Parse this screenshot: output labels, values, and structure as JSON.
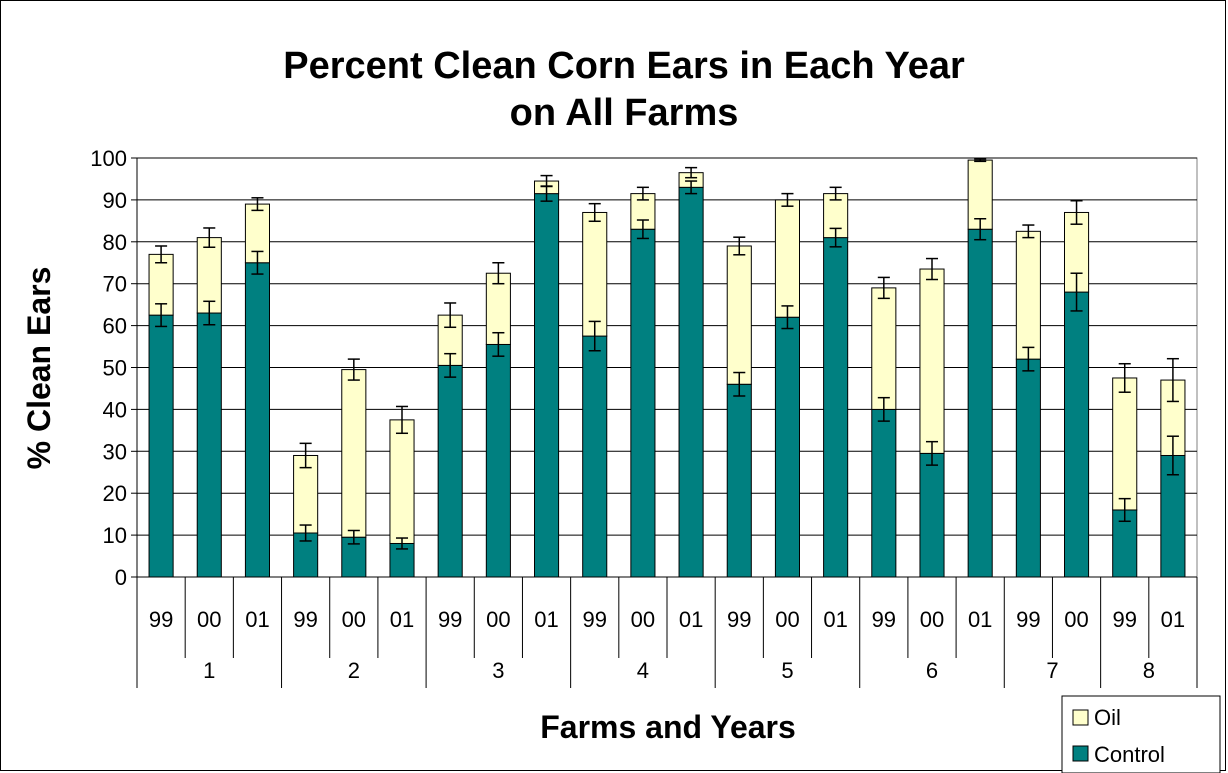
{
  "colors": {
    "control": "#008080",
    "oil": "#ffffcc",
    "grid": "#000000"
  },
  "chart_data": {
    "type": "bar",
    "stacked": true,
    "title": [
      "Percent Clean Corn Ears in Each Year",
      "on All Farms"
    ],
    "xlabel": "Farms and Years",
    "ylabel": "% Clean Ears",
    "ylim": [
      0,
      100
    ],
    "yticks": [
      0,
      10,
      20,
      30,
      40,
      50,
      60,
      70,
      80,
      90,
      100
    ],
    "grid": true,
    "legend_position": "bottom-right",
    "groups": [
      {
        "label": "1",
        "years": [
          "99",
          "00",
          "01"
        ]
      },
      {
        "label": "2",
        "years": [
          "99",
          "00",
          "01"
        ]
      },
      {
        "label": "3",
        "years": [
          "99",
          "00",
          "01"
        ]
      },
      {
        "label": "4",
        "years": [
          "99",
          "00",
          "01"
        ]
      },
      {
        "label": "5",
        "years": [
          "99",
          "00",
          "01"
        ]
      },
      {
        "label": "6",
        "years": [
          "99",
          "00",
          "01"
        ]
      },
      {
        "label": "7",
        "years": [
          "99",
          "00"
        ]
      },
      {
        "label": "8",
        "years": [
          "99",
          "01"
        ]
      }
    ],
    "series": [
      {
        "name": "Control",
        "values": [
          62.5,
          63,
          75,
          10.5,
          9.5,
          8,
          50.5,
          55.5,
          91.5,
          57.5,
          83,
          93,
          46,
          62,
          81,
          40,
          29.5,
          83,
          52,
          68,
          16,
          29
        ],
        "error": [
          2.7,
          2.8,
          2.7,
          1.9,
          1.6,
          1.3,
          2.8,
          2.8,
          1.8,
          3.5,
          2.2,
          1.5,
          2.8,
          2.7,
          2.2,
          2.8,
          2.8,
          2.5,
          2.8,
          4.5,
          2.7,
          4.6
        ]
      },
      {
        "name": "Oil",
        "values": [
          14.5,
          18,
          14,
          18.5,
          40,
          29.5,
          12,
          17,
          3,
          29.5,
          8.5,
          3.5,
          33,
          28,
          10.5,
          29,
          44,
          16.5,
          30.5,
          19,
          31.5,
          18
        ],
        "error": [
          2,
          2.3,
          1.5,
          2.9,
          2.5,
          3.2,
          2.9,
          2.5,
          1.3,
          2.1,
          1.5,
          1.2,
          2.1,
          1.5,
          1.5,
          2.5,
          2.5,
          0.3,
          1.5,
          2.8,
          3.4,
          5.1
        ]
      }
    ]
  }
}
